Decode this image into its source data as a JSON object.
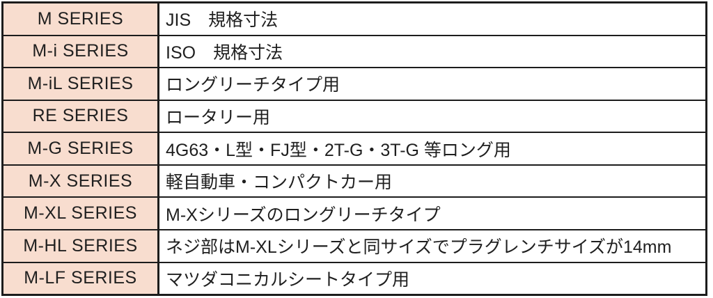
{
  "theme": {
    "border_color": "#1c1c1c",
    "label_cell_bg": "#f8ddcf",
    "text_color": "#1f1f1f",
    "desc_cell_bg": "#ffffff"
  },
  "table": {
    "rows": [
      {
        "series": "M SERIES",
        "description": "JIS　規格寸法"
      },
      {
        "series": "M-i SERIES",
        "description": "ISO　規格寸法"
      },
      {
        "series": "M-iL SERIES",
        "description": "ロングリーチタイプ用"
      },
      {
        "series": "RE SERIES",
        "description": "ロータリー用"
      },
      {
        "series": "M-G SERIES",
        "description": "4G63・L型・FJ型・2T-G・3T-G 等ロング用"
      },
      {
        "series": "M-X SERIES",
        "description": "軽自動車・コンパクトカー用"
      },
      {
        "series": "M-XL SERIES",
        "description": "M-Xシリーズのロングリーチタイプ"
      },
      {
        "series": "M-HL SERIES",
        "description": "ネジ部はM-XLシリーズと同サイズでプラグレンチサイズが14mm"
      },
      {
        "series": "M-LF SERIES",
        "description": "マツダコニカルシートタイプ用"
      }
    ]
  }
}
